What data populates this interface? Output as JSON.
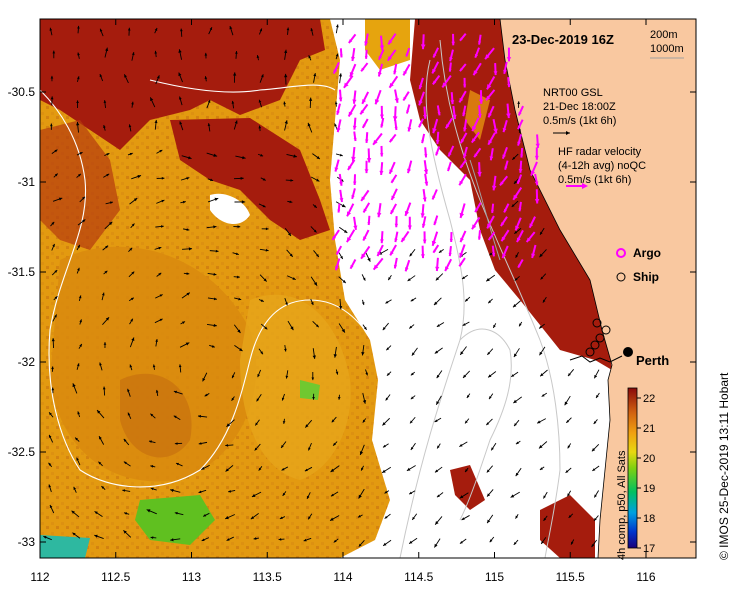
{
  "map": {
    "title": "23-Dec-2019 16Z",
    "x_ticks": [
      "112",
      "112.5",
      "113",
      "113.5",
      "114",
      "114.5",
      "115",
      "115.5",
      "116"
    ],
    "y_ticks": [
      "-30.5",
      "-31",
      "-31.5",
      "-32",
      "-32.5",
      "-33"
    ],
    "xlim": [
      112,
      116.3
    ],
    "ylim": [
      -33.2,
      -30.1
    ],
    "contour_labels": [
      "200m",
      "1000m"
    ],
    "gsl_legend": {
      "line1": "NRT00 GSL",
      "line2": "21-Dec 18:00Z",
      "line3": "0.5m/s (1kt 6h)"
    },
    "hf_legend": {
      "line1": "HF radar velocity",
      "line2": "(4-12h avg) noQC",
      "line3": "0.5m/s (1kt 6h)"
    },
    "markers": {
      "argo_label": "Argo",
      "ship_label": "Ship",
      "city_label": "Perth"
    },
    "colorbar": {
      "ticks": [
        "22",
        "21",
        "20",
        "19",
        "18",
        "17"
      ],
      "label": "4h comp, p50, All Sats"
    },
    "credit": "© IMOS 25-Dec-2019 13:11 Hobart",
    "colors": {
      "land": "#F9C8A0",
      "hot": "#A51C0D",
      "warm": "#D9790F",
      "mild": "#E6A40E",
      "argo": "#FF00FF",
      "arrow": "#000000"
    }
  }
}
